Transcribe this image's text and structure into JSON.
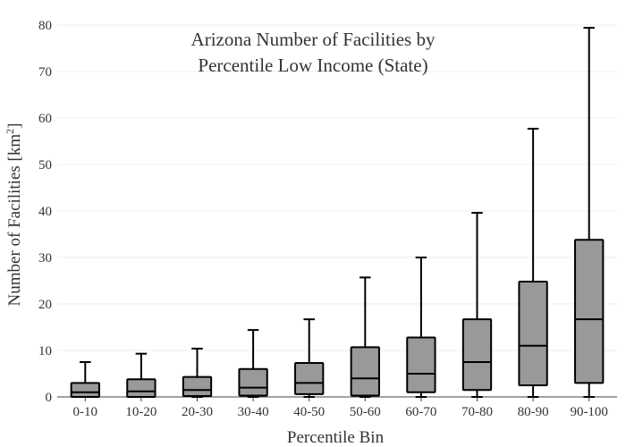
{
  "chart_data": {
    "type": "box",
    "title_lines": [
      "Arizona Number of Facilities by",
      "Percentile Low Income (State)"
    ],
    "xlabel": "Percentile Bin",
    "ylabel": {
      "text": "Number of Facilities  [km",
      "sup": "2",
      "close": "]"
    },
    "ylim": [
      0,
      80
    ],
    "y_ticks": [
      0,
      10,
      20,
      30,
      40,
      50,
      60,
      70,
      80
    ],
    "grid": true,
    "box_color": "#999999",
    "line_color": "#000000",
    "categories": [
      "0-10",
      "10-20",
      "20-30",
      "30-40",
      "40-50",
      "50-60",
      "60-70",
      "70-80",
      "80-90",
      "90-100"
    ],
    "boxes": [
      {
        "min": 0,
        "q1": 0,
        "median": 1,
        "q3": 3,
        "max": 7.5
      },
      {
        "min": 0,
        "q1": 0,
        "median": 1.2,
        "q3": 3.8,
        "max": 9.3
      },
      {
        "min": 0,
        "q1": 0.2,
        "median": 1.5,
        "q3": 4.3,
        "max": 10.4
      },
      {
        "min": 0,
        "q1": 0.3,
        "median": 2,
        "q3": 6,
        "max": 14.4
      },
      {
        "min": 0,
        "q1": 0.6,
        "median": 3,
        "q3": 7.3,
        "max": 16.7
      },
      {
        "min": 0,
        "q1": 0.3,
        "median": 4,
        "q3": 10.7,
        "max": 25.7
      },
      {
        "min": 0,
        "q1": 1,
        "median": 5,
        "q3": 12.8,
        "max": 30
      },
      {
        "min": 0,
        "q1": 1.5,
        "median": 7.5,
        "q3": 16.7,
        "max": 39.6
      },
      {
        "min": 0,
        "q1": 2.5,
        "median": 11,
        "q3": 24.8,
        "max": 57.7
      },
      {
        "min": 0,
        "q1": 3,
        "median": 16.7,
        "q3": 33.8,
        "max": 79.4
      }
    ]
  }
}
